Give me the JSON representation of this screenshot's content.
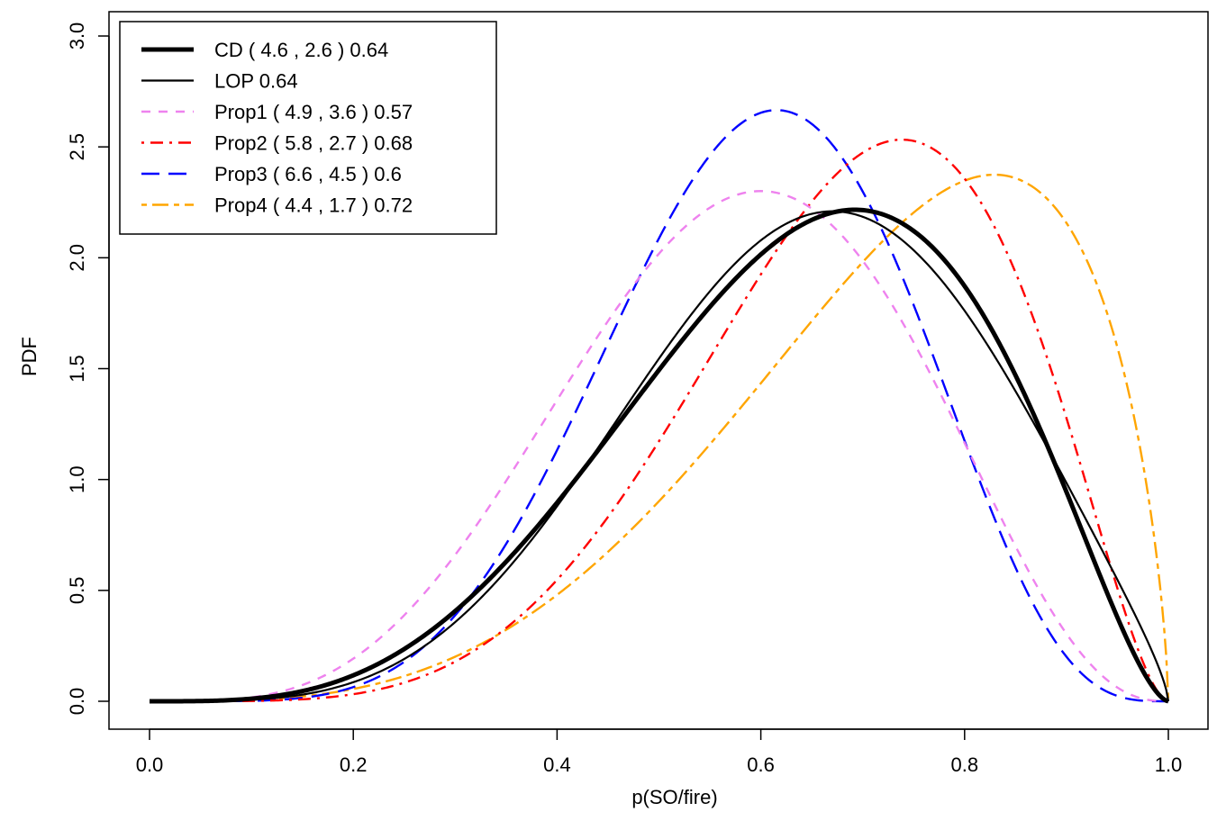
{
  "chart_data": {
    "type": "line",
    "title": "",
    "xlabel": "p(SO/fire)",
    "ylabel": "PDF",
    "xlim": [
      0.0,
      1.0
    ],
    "ylim": [
      0.0,
      3.0
    ],
    "x_ticks": [
      "0.0",
      "0.2",
      "0.4",
      "0.6",
      "0.8",
      "1.0"
    ],
    "y_ticks": [
      "0.0",
      "0.5",
      "1.0",
      "1.5",
      "2.0",
      "2.5",
      "3.0"
    ],
    "grid": false,
    "legend_position": "top-left",
    "series": [
      {
        "name": "CD ( 4.6 , 2.6 ) 0.64",
        "distribution": "beta",
        "alpha": 4.6,
        "beta": 2.6,
        "color": "#000000",
        "style": "solid",
        "weight": "thick"
      },
      {
        "name": "LOP 0.64",
        "distribution": "mixture",
        "components": [
          {
            "alpha": 4.9,
            "beta": 3.6
          },
          {
            "alpha": 5.8,
            "beta": 2.7
          },
          {
            "alpha": 6.6,
            "beta": 4.5
          },
          {
            "alpha": 4.4,
            "beta": 1.7
          }
        ],
        "color": "#000000",
        "style": "solid",
        "weight": "thin"
      },
      {
        "name": "Prop1 ( 4.9 , 3.6 ) 0.57",
        "distribution": "beta",
        "alpha": 4.9,
        "beta": 3.6,
        "color": "#ee82ee",
        "style": "dashed",
        "weight": "normal"
      },
      {
        "name": "Prop2 ( 5.8 , 2.7 ) 0.68",
        "distribution": "beta",
        "alpha": 5.8,
        "beta": 2.7,
        "color": "#ff0000",
        "style": "dotdash",
        "weight": "normal"
      },
      {
        "name": "Prop3 ( 6.6 , 4.5 ) 0.6",
        "distribution": "beta",
        "alpha": 6.6,
        "beta": 4.5,
        "color": "#0000ff",
        "style": "longdash",
        "weight": "normal"
      },
      {
        "name": "Prop4 ( 4.4 , 1.7 ) 0.72",
        "distribution": "beta",
        "alpha": 4.4,
        "beta": 1.7,
        "color": "#ffa500",
        "style": "twodash",
        "weight": "normal"
      }
    ]
  }
}
